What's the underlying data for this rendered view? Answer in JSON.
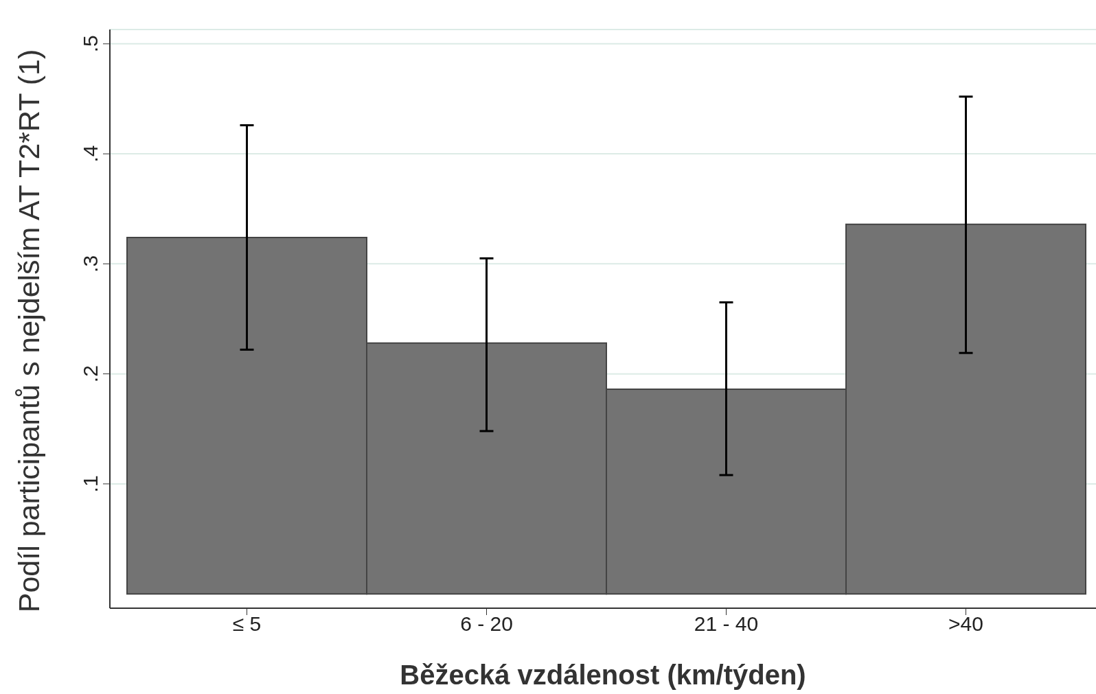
{
  "chart_data": {
    "type": "bar",
    "xlabel": "Běžecká vzdálenost (km/týden)",
    "ylabel": "Podíl participantů s nejdelším AT T2*RT (1)",
    "categories": [
      "≤ 5",
      "6 - 20",
      "21 - 40",
      ">40"
    ],
    "values": [
      0.324,
      0.228,
      0.186,
      0.336
    ],
    "errors": [
      [
        0.222,
        0.426
      ],
      [
        0.148,
        0.305
      ],
      [
        0.108,
        0.265
      ],
      [
        0.219,
        0.452
      ]
    ],
    "color": "#737373",
    "ylim": [
      -0.013,
      0.513
    ],
    "yticks": [
      {
        "value": 0.1,
        "label": ".1"
      },
      {
        "value": 0.2,
        "label": ".2"
      },
      {
        "value": 0.3,
        "label": ".3"
      },
      {
        "value": 0.4,
        "label": ".4"
      },
      {
        "value": 0.5,
        "label": ".5"
      }
    ],
    "grid": "y"
  }
}
